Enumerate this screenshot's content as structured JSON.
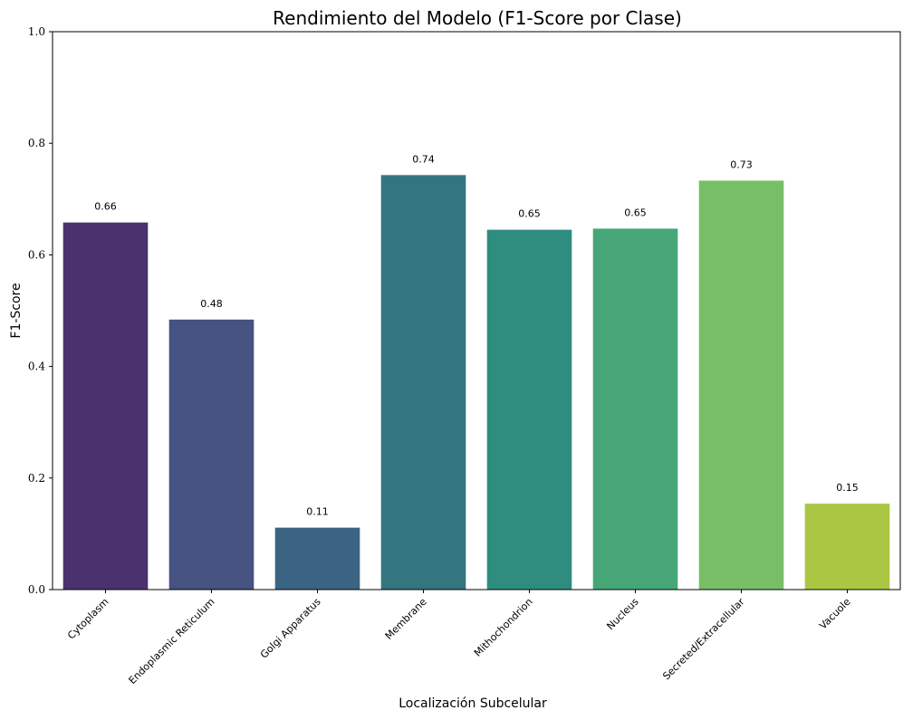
{
  "chart_data": {
    "type": "bar",
    "title": "Rendimiento del Modelo (F1-Score por Clase)",
    "xlabel": "Localización Subcelular",
    "ylabel": "F1-Score",
    "ylim": [
      0,
      1.0
    ],
    "yticks": [
      "0.0",
      "0.2",
      "0.4",
      "0.6",
      "0.8",
      "1.0"
    ],
    "grid": false,
    "categories": [
      "Cytoplasm",
      "Endoplasmic Reticulum",
      "Golgi Apparatus",
      "Membrane",
      "Mithochondrion",
      "Nucleus",
      "Secreted/Extracellular",
      "Vacuole"
    ],
    "values": [
      0.658,
      0.484,
      0.111,
      0.743,
      0.645,
      0.647,
      0.733,
      0.154
    ],
    "data_labels": [
      "0.66",
      "0.48",
      "0.11",
      "0.74",
      "0.65",
      "0.65",
      "0.73",
      "0.15"
    ],
    "colors": [
      "#4a326f",
      "#46527f",
      "#3b6482",
      "#337680",
      "#2e8d7f",
      "#46a678",
      "#78be66",
      "#aac642"
    ]
  }
}
